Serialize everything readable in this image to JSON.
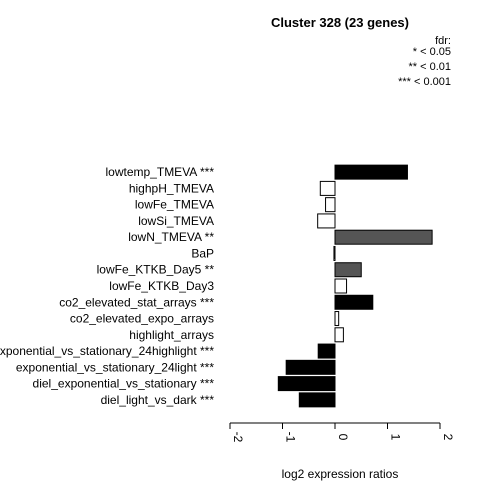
{
  "chart_data": {
    "type": "bar",
    "orientation": "horizontal",
    "title": "Cluster 328 (23 genes)",
    "xlabel": "log2 expression ratios",
    "xlim": [
      -2,
      2
    ],
    "xticks": [
      -2,
      -1,
      0,
      1,
      2
    ],
    "xtick_labels": [
      "-2",
      "-1",
      "0",
      "1",
      "2"
    ],
    "legend": {
      "position": "top-right",
      "title": "fdr:",
      "entries": [
        "* < 0.05",
        "** < 0.01",
        "*** < 0.001"
      ]
    },
    "colors": {
      "strong": "#000000",
      "medium": "#555555",
      "none": "#ffffff",
      "stroke": "#000000"
    },
    "categories": [
      "lowtemp_TMEVA ***",
      "highpH_TMEVA",
      "lowFe_TMEVA",
      "lowSi_TMEVA",
      "lowN_TMEVA **",
      "BaP",
      "lowFe_KTKB_Day5 **",
      "lowFe_KTKB_Day3",
      "co2_elevated_stat_arrays ***",
      "co2_elevated_expo_arrays",
      "highlight_arrays",
      "exponential_vs_stationary_24highlight ***",
      "exponential_vs_stationary_24light ***",
      "diel_exponential_vs_stationary ***",
      "diel_light_vs_dark ***"
    ],
    "values": [
      1.38,
      -0.28,
      -0.18,
      -0.33,
      1.85,
      -0.02,
      0.5,
      0.22,
      0.72,
      0.07,
      0.16,
      -0.32,
      -0.93,
      -1.08,
      -0.68
    ],
    "significance": [
      "strong",
      "none",
      "none",
      "none",
      "medium",
      "none",
      "medium",
      "none",
      "strong",
      "none",
      "none",
      "strong",
      "strong",
      "strong",
      "strong"
    ]
  }
}
